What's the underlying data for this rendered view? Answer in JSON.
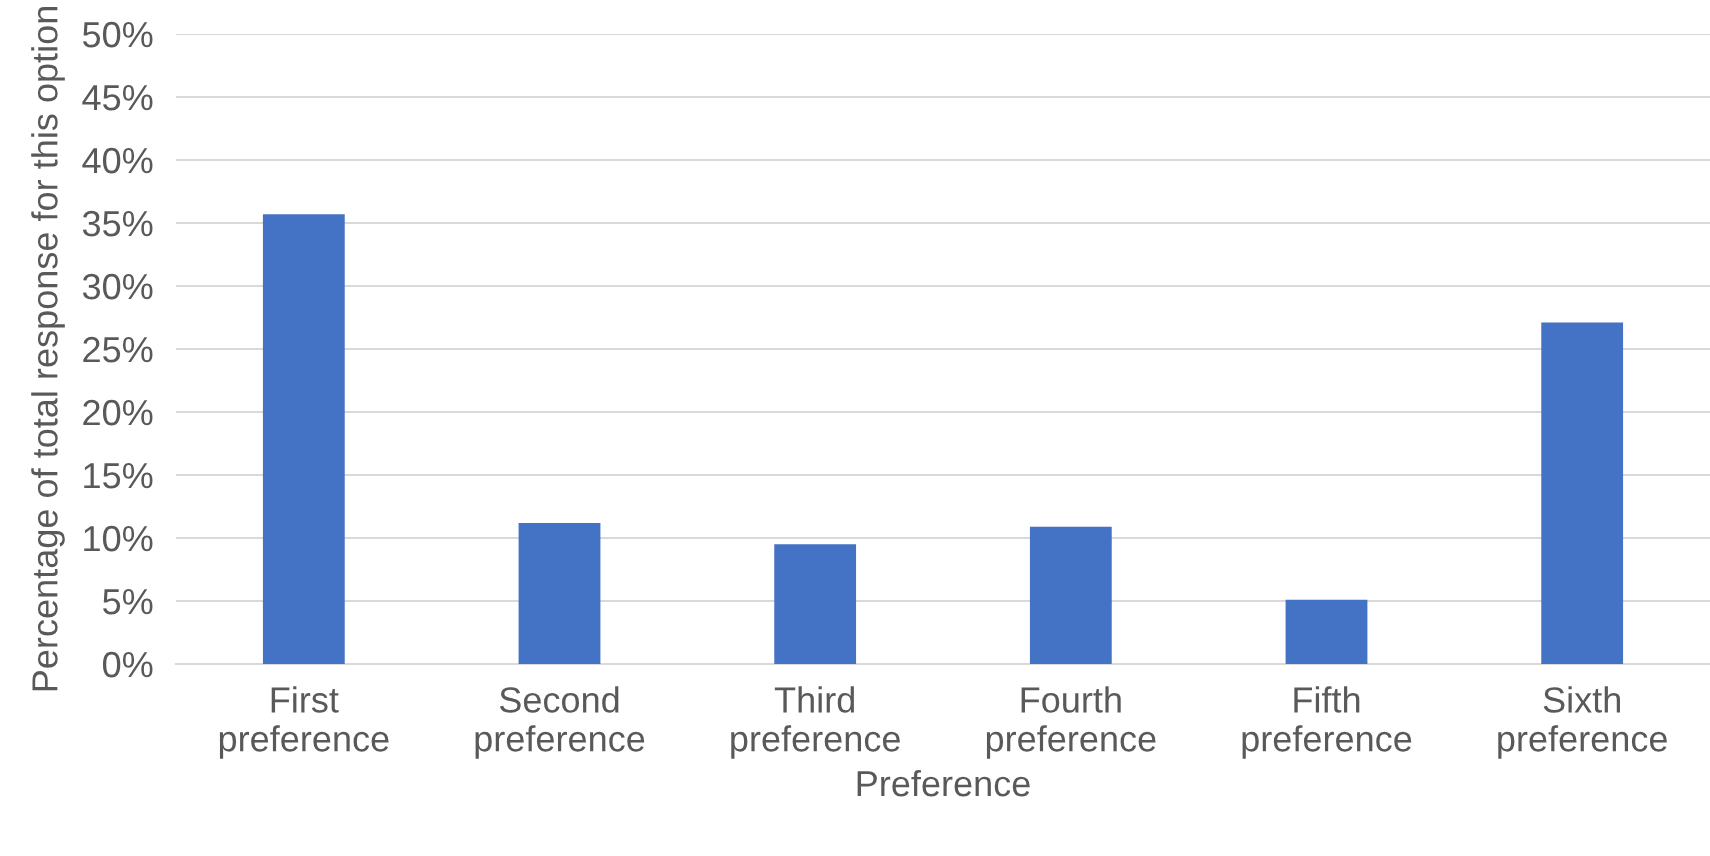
{
  "chart_data": {
    "type": "bar",
    "xlabel": "Preference",
    "ylabel": "Percentage of total response for this option",
    "categories": [
      "First\npreference",
      "Second\npreference",
      "Third\npreference",
      "Fourth\npreference",
      "Fifth\npreference",
      "Sixth\npreference"
    ],
    "values": [
      35.7,
      11.2,
      9.5,
      10.9,
      5.1,
      27.1
    ],
    "color": "#4472c4",
    "ylim": [
      0,
      50
    ],
    "yticks": [
      {
        "value": 0,
        "label": "0%"
      },
      {
        "value": 5,
        "label": "5%"
      },
      {
        "value": 10,
        "label": "10%"
      },
      {
        "value": 15,
        "label": "15%"
      },
      {
        "value": 20,
        "label": "20%"
      },
      {
        "value": 25,
        "label": "25%"
      },
      {
        "value": 30,
        "label": "30%"
      },
      {
        "value": 35,
        "label": "35%"
      },
      {
        "value": 40,
        "label": "40%"
      },
      {
        "value": 45,
        "label": "45%"
      },
      {
        "value": 50,
        "label": "50%"
      }
    ],
    "grid": "y"
  }
}
